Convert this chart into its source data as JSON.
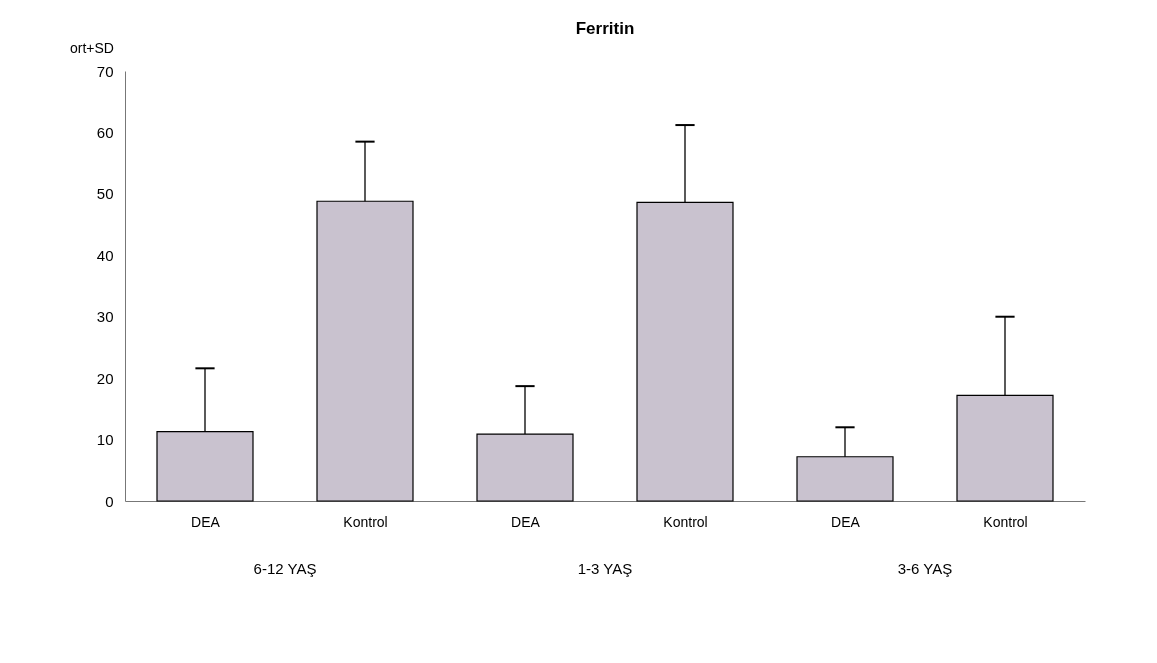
{
  "chart_data": {
    "type": "bar",
    "title": "Ferritin",
    "ylabel": "ort+SD",
    "categories": [
      "DEA",
      "Kontrol",
      "DEA",
      "Kontrol",
      "DEA",
      "Kontrol"
    ],
    "values": [
      11.3,
      48.8,
      10.9,
      48.6,
      7.2,
      17.2
    ],
    "errors": [
      [
        11.3,
        21.6
      ],
      [
        48.8,
        58.5
      ],
      [
        10.9,
        18.7
      ],
      [
        48.6,
        61.2
      ],
      [
        7.2,
        12.0
      ],
      [
        17.2,
        30.0
      ]
    ],
    "color": "#c9c2cf",
    "ylim": [
      0,
      70
    ],
    "yticks": [
      0,
      10,
      20,
      30,
      40,
      50,
      60,
      70
    ],
    "annotations": [
      "6-12 YAŞ",
      "1-3 YAŞ",
      "3-6 YAŞ"
    ],
    "grid": false
  }
}
